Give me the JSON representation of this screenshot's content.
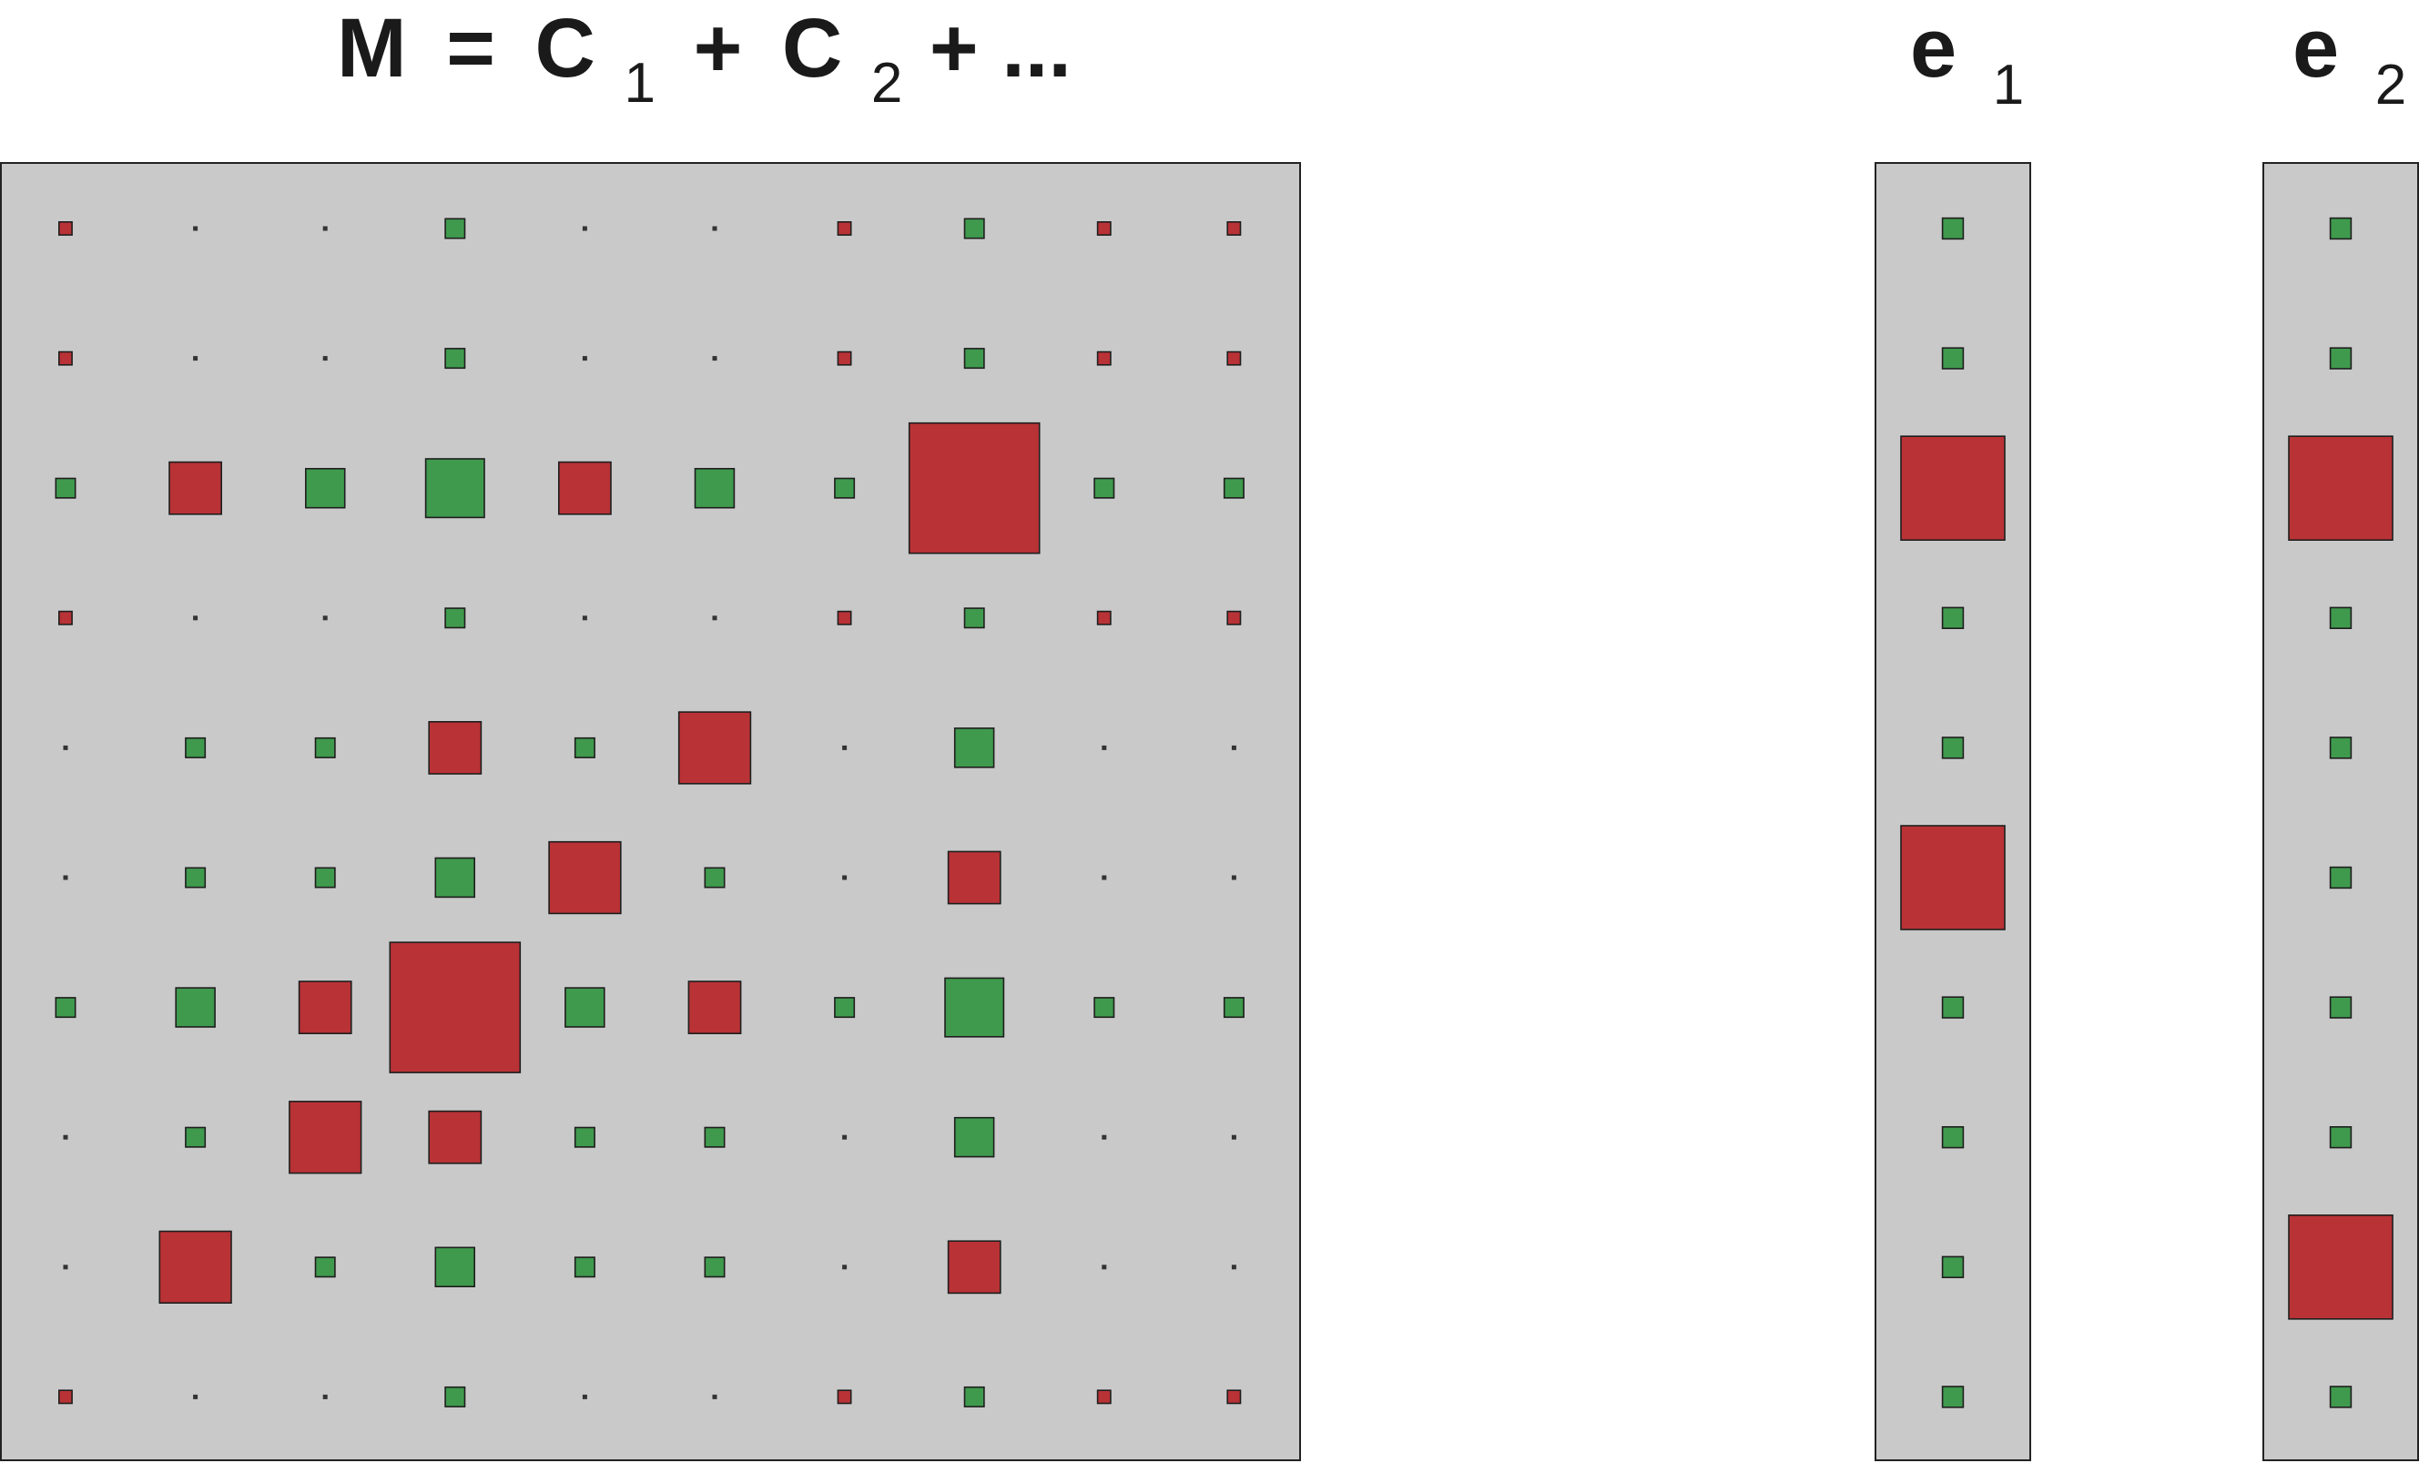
{
  "colors": {
    "positive": "#3f9a4d",
    "negative": "#b93236",
    "panel": "#c9c9c9",
    "border": "#222222",
    "text": "#1a1a1a"
  },
  "equation": {
    "m": "M",
    "equals": "=",
    "c": "C",
    "sub1": "1",
    "plus": "+",
    "sub2": "2",
    "tail": "+ ..."
  },
  "vector_labels": [
    {
      "letter": "e",
      "subscript": "1"
    },
    {
      "letter": "e",
      "subscript": "2"
    }
  ],
  "matrix": {
    "rows": 10,
    "cols": 10,
    "values": [
      [
        -0.1,
        0,
        0,
        0.15,
        0,
        0,
        -0.1,
        0.15,
        -0.1,
        -0.1
      ],
      [
        -0.1,
        0,
        0,
        0.15,
        0,
        0,
        -0.1,
        0.15,
        -0.1,
        -0.1
      ],
      [
        0.15,
        -0.4,
        0.3,
        0.45,
        -0.4,
        0.3,
        0.15,
        -1.0,
        0.15,
        0.15
      ],
      [
        -0.1,
        0,
        0,
        0.15,
        0,
        0,
        -0.1,
        0.15,
        -0.1,
        -0.1
      ],
      [
        0,
        0.15,
        0.15,
        -0.4,
        0.15,
        -0.55,
        0,
        0.3,
        0,
        0
      ],
      [
        0,
        0.15,
        0.15,
        0.3,
        -0.55,
        0.15,
        0,
        -0.4,
        0,
        0
      ],
      [
        0.15,
        0.3,
        -0.4,
        -1.0,
        0.3,
        -0.4,
        0.15,
        0.45,
        0.15,
        0.15
      ],
      [
        0,
        0.15,
        -0.55,
        -0.4,
        0.15,
        0.15,
        0,
        0.3,
        0,
        0
      ],
      [
        0,
        -0.55,
        0.15,
        0.3,
        0.15,
        0.15,
        0,
        -0.4,
        0,
        0
      ],
      [
        -0.1,
        0,
        0,
        0.15,
        0,
        0,
        -0.1,
        0.15,
        -0.1,
        -0.1
      ]
    ]
  },
  "vectors": [
    {
      "values": [
        0.2,
        0.2,
        -1.0,
        0.2,
        0.2,
        -1.0,
        0.2,
        0.2,
        0.2,
        0.2
      ]
    },
    {
      "values": [
        0.2,
        0.2,
        -1.0,
        0.2,
        0.2,
        0.2,
        0.2,
        0.2,
        -1.0,
        0.2
      ]
    }
  ]
}
